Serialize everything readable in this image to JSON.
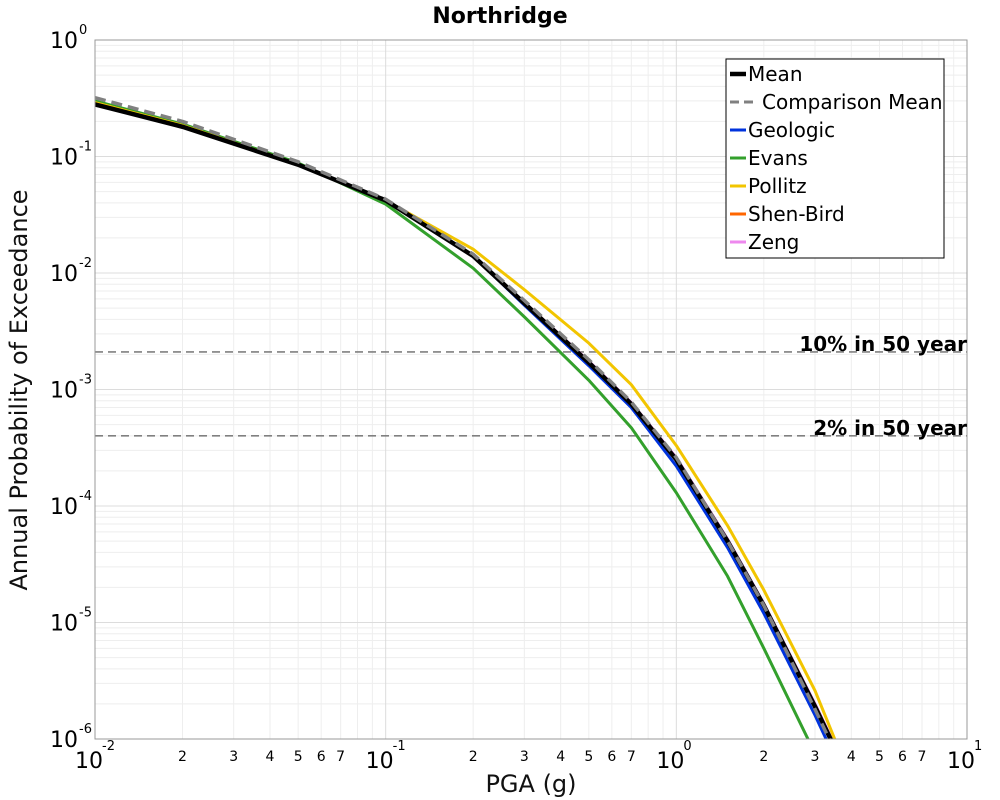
{
  "chart_data": {
    "type": "line",
    "title": "Northridge",
    "xlabel": "PGA (g)",
    "ylabel": "Annual Probability of Exceedance",
    "x_scale": "log",
    "y_scale": "log",
    "xlim": [
      0.01,
      10
    ],
    "ylim": [
      1e-06,
      1
    ],
    "grid": true,
    "legend_position": "top-right",
    "x_tick_labels": {
      "major": [
        {
          "base": "10",
          "exp": "-2",
          "value": 0.01
        },
        {
          "base": "10",
          "exp": "-1",
          "value": 0.1
        },
        {
          "base": "10",
          "exp": "0",
          "value": 1
        },
        {
          "base": "10",
          "exp": "1",
          "value": 10
        }
      ],
      "minor": [
        "2",
        "3",
        "4",
        "5",
        "6",
        "7"
      ]
    },
    "y_tick_labels": [
      {
        "base": "10",
        "exp": "0",
        "value": 1
      },
      {
        "base": "10",
        "exp": "-1",
        "value": 0.1
      },
      {
        "base": "10",
        "exp": "-2",
        "value": 0.01
      },
      {
        "base": "10",
        "exp": "-3",
        "value": 0.001
      },
      {
        "base": "10",
        "exp": "-4",
        "value": 0.0001
      },
      {
        "base": "10",
        "exp": "-5",
        "value": 1e-05
      },
      {
        "base": "10",
        "exp": "-6",
        "value": 1e-06
      }
    ],
    "reference_lines": [
      {
        "label": "10% in 50 year",
        "y": 0.0021,
        "color": "#808080"
      },
      {
        "label": "2% in 50 year",
        "y": 0.0004,
        "color": "#808080"
      }
    ],
    "series": [
      {
        "name": "Mean",
        "color": "#000000",
        "style": "solid",
        "x": [
          0.01,
          0.02,
          0.05,
          0.1,
          0.2,
          0.3,
          0.5,
          0.7,
          1.0,
          1.5,
          2.0,
          3.0,
          3.5
        ],
        "y": [
          0.28,
          0.18,
          0.085,
          0.042,
          0.014,
          0.0055,
          0.0017,
          0.00075,
          0.00025,
          5e-05,
          1.4e-05,
          1.9e-06,
          8.5e-07
        ]
      },
      {
        "name": "Comparison Mean",
        "color": "#808080",
        "style": "dashed",
        "x": [
          0.01,
          0.02,
          0.05,
          0.1,
          0.2,
          0.3,
          0.5,
          0.7,
          1.0,
          1.5,
          2.0,
          3.0,
          3.5
        ],
        "y": [
          0.32,
          0.2,
          0.09,
          0.043,
          0.0145,
          0.0058,
          0.0018,
          0.00078,
          0.00026,
          5e-05,
          1.4e-05,
          1.8e-06,
          8e-07
        ]
      },
      {
        "name": "Geologic",
        "color": "#0033dd",
        "style": "solid",
        "x": [
          0.01,
          0.02,
          0.05,
          0.1,
          0.2,
          0.3,
          0.5,
          0.7,
          1.0,
          1.5,
          2.0,
          3.0,
          3.5
        ],
        "y": [
          0.28,
          0.18,
          0.085,
          0.042,
          0.014,
          0.0053,
          0.0016,
          0.0007,
          0.00022,
          4.4e-05,
          1.2e-05,
          1.6e-06,
          7e-07
        ]
      },
      {
        "name": "Evans",
        "color": "#33a02c",
        "style": "solid",
        "x": [
          0.01,
          0.02,
          0.05,
          0.1,
          0.2,
          0.3,
          0.5,
          0.7,
          1.0,
          1.5,
          2.0,
          3.0
        ],
        "y": [
          0.3,
          0.19,
          0.088,
          0.039,
          0.011,
          0.0042,
          0.0012,
          0.00047,
          0.00013,
          2.5e-05,
          6e-06,
          7.5e-07
        ]
      },
      {
        "name": "Pollitz",
        "color": "#f2c500",
        "style": "solid",
        "x": [
          0.01,
          0.02,
          0.05,
          0.1,
          0.2,
          0.3,
          0.5,
          0.7,
          1.0,
          1.5,
          2.0,
          3.0,
          3.6
        ],
        "y": [
          0.29,
          0.185,
          0.086,
          0.042,
          0.016,
          0.0072,
          0.0025,
          0.0011,
          0.00033,
          6.8e-05,
          1.9e-05,
          2.6e-06,
          8.5e-07
        ]
      },
      {
        "name": "Shen-Bird",
        "color": "#ff6600",
        "style": "solid",
        "x": [
          0.01,
          0.02,
          0.05,
          0.1,
          0.2,
          0.3,
          0.5,
          0.7,
          1.0,
          1.5,
          2.0,
          3.0,
          3.5
        ],
        "y": [
          0.28,
          0.18,
          0.085,
          0.042,
          0.014,
          0.0055,
          0.0017,
          0.00075,
          0.00025,
          5e-05,
          1.4e-05,
          1.9e-06,
          8.5e-07
        ]
      },
      {
        "name": "Zeng",
        "color": "#ee88ee",
        "style": "solid",
        "x": [
          0.01,
          0.02,
          0.05,
          0.1,
          0.2,
          0.3,
          0.5,
          0.7,
          1.0,
          1.5,
          2.0,
          3.0,
          3.5
        ],
        "y": [
          0.28,
          0.18,
          0.085,
          0.042,
          0.014,
          0.0056,
          0.00175,
          0.00077,
          0.00026,
          5.2e-05,
          1.45e-05,
          2e-06,
          9e-07
        ]
      }
    ]
  }
}
